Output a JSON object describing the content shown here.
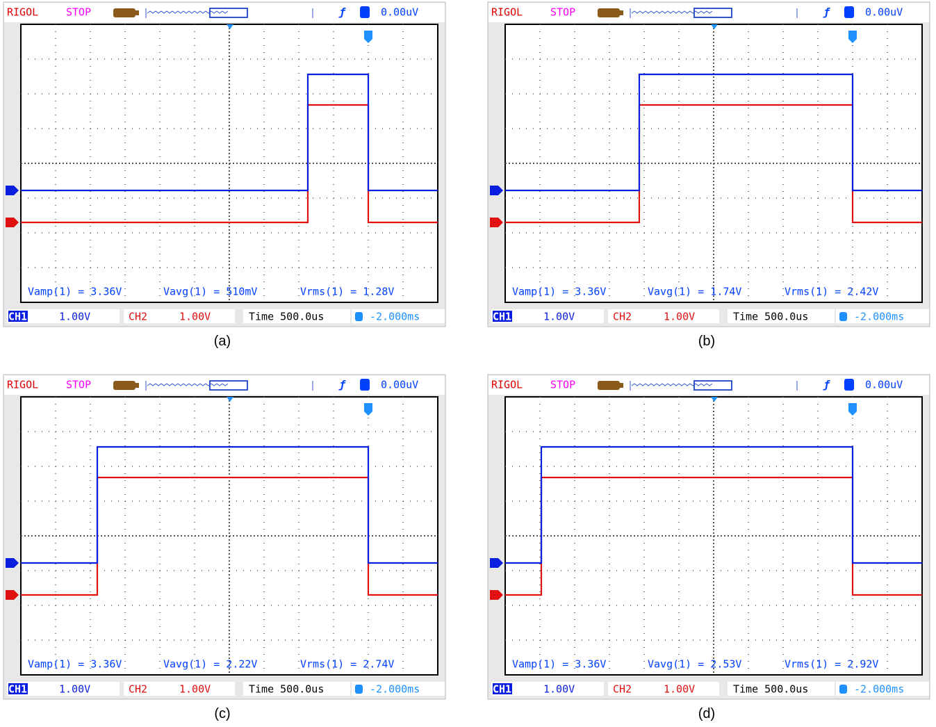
{
  "panels": [
    {
      "caption": "(a)",
      "header": {
        "brand": "RIGOL",
        "status": "STOP",
        "trigger_level": "0.00uV"
      },
      "measurements": [
        "Vamp(1) = 3.36V",
        "Vavg(1) = 510mV",
        "Vrms(1) = 1.28V"
      ],
      "footer": {
        "ch1_label": "CH1",
        "ch1_scale": "1.00V",
        "ch2_label": "CH2",
        "ch2_scale": "1.00V",
        "timebase": "Time 500.0us",
        "offset": "-2.000ms"
      },
      "pulse": {
        "rise_div": 8.26,
        "fall_div": 10.0,
        "ch1_low": -0.78,
        "ch1_high": 2.56,
        "ch2_low": -1.7,
        "ch2_high": 1.68
      }
    },
    {
      "caption": "(b)",
      "header": {
        "brand": "RIGOL",
        "status": "STOP",
        "trigger_level": "0.00uV"
      },
      "measurements": [
        "Vamp(1) = 3.36V",
        "Vavg(1) = 1.74V",
        "Vrms(1) = 2.42V"
      ],
      "footer": {
        "ch1_label": "CH1",
        "ch1_scale": "1.00V",
        "ch2_label": "CH2",
        "ch2_scale": "1.00V",
        "timebase": "Time 500.0us",
        "offset": "-2.000ms"
      },
      "pulse": {
        "rise_div": 3.86,
        "fall_div": 10.0,
        "ch1_low": -0.78,
        "ch1_high": 2.56,
        "ch2_low": -1.7,
        "ch2_high": 1.68
      }
    },
    {
      "caption": "(c)",
      "header": {
        "brand": "RIGOL",
        "status": "STOP",
        "trigger_level": "0.00uV"
      },
      "measurements": [
        "Vamp(1) = 3.36V",
        "Vavg(1) = 2.22V",
        "Vrms(1) = 2.74V"
      ],
      "footer": {
        "ch1_label": "CH1",
        "ch1_scale": "1.00V",
        "ch2_label": "CH2",
        "ch2_scale": "1.00V",
        "timebase": "Time 500.0us",
        "offset": "-2.000ms"
      },
      "pulse": {
        "rise_div": 2.2,
        "fall_div": 10.0,
        "ch1_low": -0.78,
        "ch1_high": 2.56,
        "ch2_low": -1.7,
        "ch2_high": 1.68
      }
    },
    {
      "caption": "(d)",
      "header": {
        "brand": "RIGOL",
        "status": "STOP",
        "trigger_level": "0.00uV"
      },
      "measurements": [
        "Vamp(1) = 3.36V",
        "Vavg(1) = 2.53V",
        "Vrms(1) = 2.92V"
      ],
      "footer": {
        "ch1_label": "CH1",
        "ch1_scale": "1.00V",
        "ch2_label": "CH2",
        "ch2_scale": "1.00V",
        "timebase": "Time 500.0us",
        "offset": "-2.000ms"
      },
      "pulse": {
        "rise_div": 1.04,
        "fall_div": 10.0,
        "ch1_low": -0.78,
        "ch1_high": 2.56,
        "ch2_low": -1.7,
        "ch2_high": 1.68
      }
    }
  ]
}
